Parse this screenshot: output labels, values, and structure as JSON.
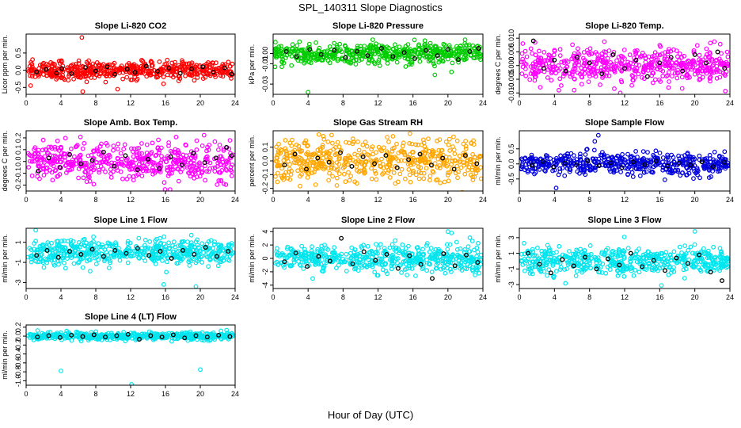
{
  "figure": {
    "title": "SPL_140311  Slope Diagnostics",
    "xlabel": "Hour of Day (UTC)"
  },
  "chart_data": [
    {
      "type": "scatter",
      "title": "Slope Li-820 CO2",
      "ylabel": "Licor ppm per min.",
      "color": "#ff0000",
      "xlim": [
        0,
        24
      ],
      "xticks": [
        0,
        4,
        8,
        12,
        16,
        20,
        24
      ],
      "ylim": [
        -0.7,
        1.05
      ],
      "yticks": [
        -0.5,
        0.0,
        0.5
      ],
      "spread": 0.13,
      "outliers": [
        [
          6.4,
          0.95
        ],
        [
          6.5,
          -0.62
        ],
        [
          10.5,
          -0.55
        ]
      ],
      "black_points": [
        [
          1.2,
          -0.05
        ],
        [
          2.3,
          0.02
        ],
        [
          3.5,
          -0.08
        ],
        [
          4.1,
          0.05
        ],
        [
          5.2,
          -0.1
        ],
        [
          6.8,
          0.08
        ],
        [
          8.0,
          -0.02
        ],
        [
          9.3,
          0.1
        ],
        [
          10.2,
          -0.12
        ],
        [
          11.6,
          0.03
        ],
        [
          12.5,
          -0.06
        ],
        [
          13.8,
          0.12
        ],
        [
          15.1,
          -0.03
        ],
        [
          16.4,
          0.06
        ],
        [
          17.7,
          -0.09
        ],
        [
          19.0,
          0.04
        ],
        [
          20.3,
          0.1
        ],
        [
          21.5,
          -0.05
        ],
        [
          22.8,
          0.07
        ],
        [
          23.6,
          -0.11
        ]
      ]
    },
    {
      "type": "scatter",
      "title": "Slope Li-820 Pressure",
      "ylabel": "kPa per min.",
      "color": "#00cc00",
      "xlim": [
        0,
        24
      ],
      "xticks": [
        0,
        4,
        8,
        12,
        16,
        20,
        24
      ],
      "ylim": [
        -0.04,
        0.019
      ],
      "yticks": [
        0.0,
        -0.01,
        -0.03
      ],
      "spread": 0.005,
      "outliers": [
        [
          1.0,
          -0.013
        ],
        [
          4.0,
          -0.038
        ],
        [
          12.2,
          -0.012
        ],
        [
          18.5,
          -0.021
        ],
        [
          20.4,
          -0.018
        ]
      ],
      "black_points": [
        [
          1.5,
          0.002
        ],
        [
          2.7,
          -0.003
        ],
        [
          4.2,
          0.004
        ],
        [
          5.5,
          -0.001
        ],
        [
          7.0,
          0.003
        ],
        [
          8.3,
          -0.004
        ],
        [
          9.6,
          0.002
        ],
        [
          10.8,
          -0.002
        ],
        [
          12.4,
          0.005
        ],
        [
          13.7,
          -0.003
        ],
        [
          15.0,
          0.001
        ],
        [
          16.2,
          -0.005
        ],
        [
          17.5,
          0.003
        ],
        [
          18.8,
          -0.002
        ],
        [
          20.0,
          0.004
        ],
        [
          21.2,
          -0.006
        ],
        [
          22.5,
          0.002
        ],
        [
          23.5,
          0.005
        ]
      ]
    },
    {
      "type": "scatter",
      "title": "Slope Li-820 Temp.",
      "ylabel": "degrees C per min.",
      "color": "#ff00ff",
      "xlim": [
        0,
        24
      ],
      "xticks": [
        0,
        4,
        8,
        12,
        16,
        20,
        24
      ],
      "ylim": [
        -0.0105,
        0.0115
      ],
      "yticks": [
        -0.01,
        -0.005,
        0.0,
        0.005,
        0.01
      ],
      "spread": 0.003,
      "outliers": [
        [
          4.5,
          -0.009
        ],
        [
          9.2,
          -0.007
        ],
        [
          11.5,
          -0.01
        ],
        [
          17.0,
          -0.008
        ]
      ],
      "black_points": [
        [
          1.6,
          0.009
        ],
        [
          2.8,
          -0.001
        ],
        [
          4.0,
          0.002
        ],
        [
          5.3,
          -0.002
        ],
        [
          6.6,
          0.003
        ],
        [
          8.0,
          0.001
        ],
        [
          9.4,
          -0.003
        ],
        [
          10.7,
          0.004
        ],
        [
          12.0,
          -0.001
        ],
        [
          13.3,
          0.002
        ],
        [
          14.6,
          -0.004
        ],
        [
          16.0,
          0.001
        ],
        [
          17.3,
          0.003
        ],
        [
          18.6,
          -0.002
        ],
        [
          20.0,
          0.004
        ],
        [
          21.3,
          0.001
        ],
        [
          22.6,
          0.005
        ],
        [
          23.4,
          -0.001
        ]
      ]
    },
    {
      "type": "scatter",
      "title": "Slope Amb. Box Temp.",
      "ylabel": "degrees C per min.",
      "color": "#ff00ff",
      "xlim": [
        0,
        24
      ],
      "xticks": [
        0,
        4,
        8,
        12,
        16,
        20,
        24
      ],
      "ylim": [
        -0.25,
        0.26
      ],
      "yticks": [
        -0.2,
        -0.1,
        0.0,
        0.1,
        0.2
      ],
      "spread": 0.08,
      "outliers": [],
      "black_points": [
        [
          1.4,
          -0.08
        ],
        [
          2.6,
          0.03
        ],
        [
          3.9,
          -0.05
        ],
        [
          5.0,
          0.06
        ],
        [
          6.3,
          -0.02
        ],
        [
          7.6,
          0.01
        ],
        [
          8.9,
          0.08
        ],
        [
          10.1,
          -0.04
        ],
        [
          11.4,
          0.05
        ],
        [
          12.8,
          -0.07
        ],
        [
          14.0,
          0.02
        ],
        [
          15.3,
          -0.06
        ],
        [
          16.6,
          0.04
        ],
        [
          17.9,
          -0.03
        ],
        [
          19.2,
          0.07
        ],
        [
          20.5,
          -0.01
        ],
        [
          21.8,
          0.03
        ],
        [
          23.0,
          0.12
        ],
        [
          23.6,
          0.05
        ]
      ]
    },
    {
      "type": "scatter",
      "title": "Slope Gas Stream RH",
      "ylabel": "percent per min.",
      "color": "#ffa500",
      "xlim": [
        0,
        24
      ],
      "xticks": [
        0,
        4,
        8,
        12,
        16,
        20,
        24
      ],
      "ylim": [
        -0.22,
        0.22
      ],
      "yticks": [
        -0.2,
        -0.1,
        0.0,
        0.1
      ],
      "spread": 0.08,
      "outliers": [],
      "black_points": [
        [
          1.3,
          -0.03
        ],
        [
          2.5,
          0.05
        ],
        [
          3.8,
          -0.06
        ],
        [
          5.1,
          0.02
        ],
        [
          6.4,
          -0.01
        ],
        [
          7.7,
          0.06
        ],
        [
          9.0,
          -0.04
        ],
        [
          10.3,
          0.03
        ],
        [
          11.6,
          -0.02
        ],
        [
          12.9,
          0.04
        ],
        [
          14.2,
          -0.05
        ],
        [
          15.5,
          0.01
        ],
        [
          16.8,
          0.05
        ],
        [
          18.1,
          -0.03
        ],
        [
          19.4,
          0.02
        ],
        [
          20.7,
          -0.06
        ],
        [
          22.0,
          0.04
        ],
        [
          23.3,
          -0.02
        ]
      ]
    },
    {
      "type": "scatter",
      "title": "Slope Sample Flow",
      "ylabel": "ml/min per min.",
      "color": "#0000dd",
      "xlim": [
        0,
        24
      ],
      "xticks": [
        0,
        4,
        8,
        12,
        16,
        20,
        24
      ],
      "ylim": [
        -0.9,
        1.1
      ],
      "yticks": [
        -0.5,
        0.0,
        0.5
      ],
      "spread": 0.17,
      "outliers": [
        [
          8.6,
          0.75
        ],
        [
          9.0,
          0.95
        ],
        [
          4.2,
          -0.8
        ]
      ],
      "black_points": [
        [
          1.5,
          -0.05
        ],
        [
          2.7,
          0.08
        ],
        [
          3.9,
          -0.1
        ],
        [
          5.2,
          0.02
        ],
        [
          6.5,
          -0.03
        ],
        [
          7.8,
          0.1
        ],
        [
          9.1,
          -0.06
        ],
        [
          10.4,
          0.04
        ],
        [
          11.7,
          -0.12
        ],
        [
          13.0,
          0.06
        ],
        [
          14.3,
          -0.02
        ],
        [
          15.6,
          0.09
        ],
        [
          16.9,
          -0.07
        ],
        [
          18.2,
          0.03
        ],
        [
          19.5,
          -0.04
        ],
        [
          20.8,
          0.07
        ],
        [
          22.1,
          -0.09
        ],
        [
          23.4,
          0.05
        ]
      ]
    },
    {
      "type": "scatter",
      "title": "Slope Line 1 Flow",
      "ylabel": "ml/min per min.",
      "color": "#00e5ee",
      "xlim": [
        0,
        24
      ],
      "xticks": [
        0,
        4,
        8,
        12,
        16,
        20,
        24
      ],
      "ylim": [
        -3.6,
        2.4
      ],
      "yticks": [
        -3,
        -1,
        1
      ],
      "spread": 0.6,
      "outliers": [
        [
          1.1,
          2.2
        ],
        [
          15.8,
          -3.2
        ],
        [
          19.5,
          -3.4
        ]
      ],
      "black_points": [
        [
          1.2,
          -0.3
        ],
        [
          2.4,
          0.2
        ],
        [
          3.7,
          -0.5
        ],
        [
          5.0,
          0.1
        ],
        [
          6.3,
          -0.2
        ],
        [
          7.6,
          0.3
        ],
        [
          8.9,
          -0.4
        ],
        [
          10.2,
          0.2
        ],
        [
          11.5,
          -0.1
        ],
        [
          12.8,
          0.4
        ],
        [
          14.1,
          -0.3
        ],
        [
          15.4,
          0.1
        ],
        [
          16.7,
          -0.6
        ],
        [
          18.0,
          0.2
        ],
        [
          19.3,
          -0.2
        ],
        [
          20.6,
          0.5
        ],
        [
          21.9,
          -0.4
        ],
        [
          23.2,
          0.1
        ]
      ]
    },
    {
      "type": "scatter",
      "title": "Slope Line 2 Flow",
      "ylabel": "ml/min per min.",
      "color": "#00e5ee",
      "xlim": [
        0,
        24
      ],
      "xticks": [
        0,
        4,
        8,
        12,
        16,
        20,
        24
      ],
      "ylim": [
        -4.5,
        4.5
      ],
      "yticks": [
        -4,
        -2,
        0,
        2,
        4
      ],
      "spread": 1.0,
      "outliers": [
        [
          20.0,
          4.0
        ],
        [
          20.4,
          3.8
        ]
      ],
      "black_points": [
        [
          1.3,
          -0.5
        ],
        [
          2.6,
          0.8
        ],
        [
          3.9,
          -1.2
        ],
        [
          5.2,
          0.3
        ],
        [
          6.5,
          -0.4
        ],
        [
          7.8,
          3.0
        ],
        [
          9.1,
          -0.8
        ],
        [
          10.4,
          1.0
        ],
        [
          11.7,
          -0.3
        ],
        [
          13.0,
          0.6
        ],
        [
          14.3,
          -1.5
        ],
        [
          15.6,
          0.4
        ],
        [
          16.9,
          -0.9
        ],
        [
          18.2,
          -3.0
        ],
        [
          19.5,
          0.7
        ],
        [
          20.8,
          -1.1
        ],
        [
          22.1,
          0.5
        ],
        [
          23.4,
          -0.6
        ]
      ]
    },
    {
      "type": "scatter",
      "title": "Slope Line 3 Flow",
      "ylabel": "ml/min per min.",
      "color": "#00e5ee",
      "xlim": [
        0,
        24
      ],
      "xticks": [
        0,
        4,
        8,
        12,
        16,
        20,
        24
      ],
      "ylim": [
        -3.5,
        4.2
      ],
      "yticks": [
        -3,
        -1,
        1,
        3
      ],
      "spread": 0.8,
      "outliers": [
        [
          20.0,
          3.8
        ],
        [
          16.2,
          -3.1
        ]
      ],
      "black_points": [
        [
          1.0,
          1.0
        ],
        [
          2.3,
          -0.4
        ],
        [
          3.6,
          -1.5
        ],
        [
          4.9,
          0.2
        ],
        [
          6.2,
          -0.6
        ],
        [
          7.5,
          0.5
        ],
        [
          8.8,
          -1.0
        ],
        [
          10.1,
          0.3
        ],
        [
          11.4,
          -0.5
        ],
        [
          12.7,
          1.0
        ],
        [
          14.0,
          -0.7
        ],
        [
          15.3,
          0.1
        ],
        [
          16.6,
          -1.2
        ],
        [
          17.9,
          0.4
        ],
        [
          19.2,
          -0.3
        ],
        [
          20.5,
          0.8
        ],
        [
          21.8,
          -1.4
        ],
        [
          23.1,
          -2.5
        ]
      ]
    },
    {
      "type": "scatter",
      "title": "Slope Line 4 (LT) Flow",
      "ylabel": "ml/min per min.",
      "color": "#00e5ee",
      "xlim": [
        0,
        24
      ],
      "xticks": [
        0,
        4,
        8,
        12,
        16,
        20,
        24
      ],
      "ylim": [
        -1.1,
        0.25
      ],
      "yticks": [
        -1.0,
        -0.8,
        -0.6,
        -0.4,
        -0.2,
        0.0,
        0.2
      ],
      "spread": 0.04,
      "outliers": [
        [
          4.0,
          -0.78
        ],
        [
          12.1,
          -1.08
        ],
        [
          20.0,
          -0.75
        ],
        [
          20.0,
          0.05
        ]
      ],
      "black_points": [
        [
          1.3,
          -0.02
        ],
        [
          2.6,
          0.01
        ],
        [
          3.9,
          -0.03
        ],
        [
          5.2,
          0.02
        ],
        [
          6.5,
          -0.01
        ],
        [
          7.8,
          0.03
        ],
        [
          9.1,
          -0.02
        ],
        [
          10.4,
          0.01
        ],
        [
          11.7,
          0.04
        ],
        [
          13.0,
          -0.07
        ],
        [
          14.3,
          0.01
        ],
        [
          15.6,
          -0.02
        ],
        [
          16.9,
          0.03
        ],
        [
          18.2,
          -0.04
        ],
        [
          19.5,
          0.01
        ],
        [
          20.8,
          -0.02
        ],
        [
          22.1,
          0.02
        ],
        [
          23.4,
          -0.01
        ]
      ]
    }
  ]
}
